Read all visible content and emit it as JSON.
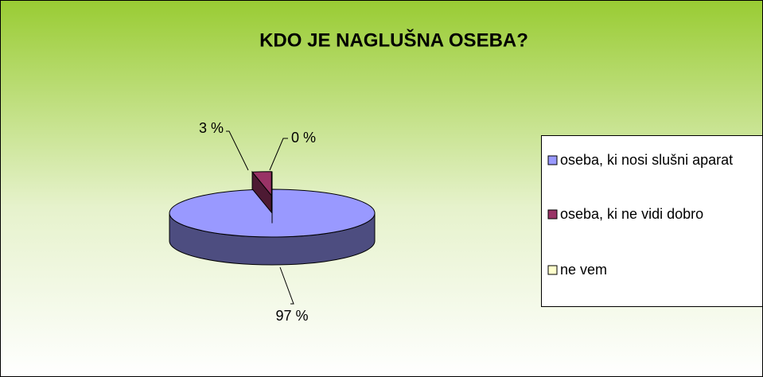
{
  "chart_data": {
    "type": "pie",
    "title": "KDO JE NAGLUŠNA OSEBA?",
    "categories": [
      "oseba, ki nosi slušni aparat",
      "oseba, ki ne vidi dobro",
      "ne vem"
    ],
    "values": [
      97,
      3,
      0
    ],
    "value_labels": [
      "97 %",
      "3 %",
      "0 %"
    ],
    "colors": [
      "#9999ff",
      "#993366",
      "#ffffcc"
    ],
    "legend": "right"
  }
}
